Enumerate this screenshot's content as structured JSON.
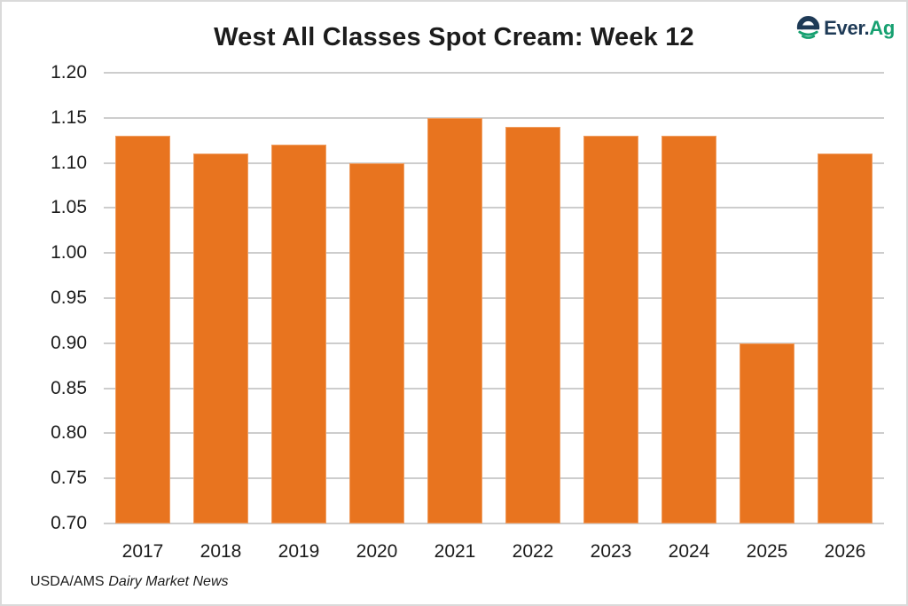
{
  "chart_data": {
    "type": "bar",
    "title": "West All Classes Spot Cream: Week 12",
    "categories": [
      "2017",
      "2018",
      "2019",
      "2020",
      "2021",
      "2022",
      "2023",
      "2024",
      "2025",
      "2026"
    ],
    "values": [
      1.13,
      1.11,
      1.12,
      1.1,
      1.15,
      1.14,
      1.13,
      1.13,
      0.9,
      1.11
    ],
    "xlabel": "",
    "ylabel": "",
    "ylim": [
      0.7,
      1.2
    ],
    "ytick_labels": [
      "1.20",
      "1.15",
      "1.10",
      "1.05",
      "1.00",
      "0.95",
      "0.90",
      "0.85",
      "0.80",
      "0.75",
      "0.70"
    ],
    "grid": true,
    "legend": "none",
    "bar_color": "#E8741F",
    "grid_color": "#CDCDCD",
    "text_color": "#1C1C1C"
  },
  "logo": {
    "brand_prefix": "Ever.",
    "brand_suffix": "Ag",
    "navy_color": "#1E3A56",
    "green_color": "#16A070"
  },
  "source_note": {
    "agency": "USDA/AMS",
    "publication": "Dairy Market News"
  }
}
